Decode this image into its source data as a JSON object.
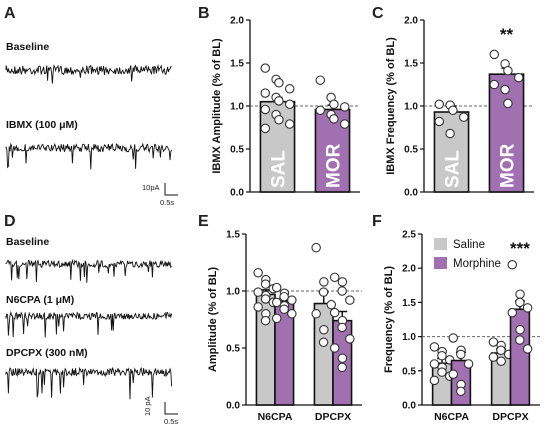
{
  "colors": {
    "saline": "#c8c8c8",
    "morphine": "#a070b0",
    "axis": "#111111",
    "point_fill": "#ffffff"
  },
  "panels": {
    "A": {
      "letter": "A",
      "trace_labels": [
        "Baseline",
        "IBMX (100 μM)"
      ],
      "scale_y": "10pA",
      "scale_x": "0.5s"
    },
    "D": {
      "letter": "D",
      "trace_labels": [
        "Baseline",
        "N6CPA (1 μM)",
        "DPCPX (300 nM)"
      ],
      "scale_y": "10 pA",
      "scale_x": "0.5s"
    },
    "B": {
      "letter": "B"
    },
    "C": {
      "letter": "C"
    },
    "E": {
      "letter": "E"
    },
    "F": {
      "letter": "F"
    }
  },
  "chart_data": [
    {
      "panel": "B",
      "type": "bar",
      "ylabel": "IBMX Amplitude (% of BL)",
      "ylim": [
        0,
        2.0
      ],
      "yticks": [
        "0.0",
        "0.5",
        "1.0",
        "1.5",
        "2.0"
      ],
      "reference_line": 1.0,
      "categories": [
        "SAL",
        "MOR"
      ],
      "values": [
        1.05,
        0.96
      ],
      "errors": [
        0.05,
        0.05
      ],
      "points": [
        [
          1.44,
          1.31,
          1.27,
          1.2,
          1.15,
          1.1,
          1.06,
          1.02,
          0.96,
          0.9,
          0.84,
          0.79,
          0.74
        ],
        [
          1.3,
          1.1,
          1.02,
          0.99,
          0.95,
          0.9,
          0.85,
          0.79
        ]
      ]
    },
    {
      "panel": "C",
      "type": "bar",
      "ylabel": "IBMX Frequency (% of BL)",
      "ylim": [
        0,
        2.0
      ],
      "yticks": [
        "0.0",
        "0.5",
        "1.0",
        "1.5",
        "2.0"
      ],
      "reference_line": 1.0,
      "categories": [
        "SAL",
        "MOR"
      ],
      "values": [
        0.93,
        1.37
      ],
      "errors": [
        0.07,
        0.07
      ],
      "points": [
        [
          1.02,
          1.01,
          0.95,
          0.87,
          0.82,
          0.68
        ],
        [
          1.6,
          1.49,
          1.41,
          1.33,
          1.25,
          1.19,
          1.03
        ]
      ],
      "significance": [
        {
          "category": "MOR",
          "label": "**"
        }
      ]
    },
    {
      "panel": "E",
      "type": "bar",
      "ylabel": "Amplitude (% of BL)",
      "ylim": [
        0,
        1.5
      ],
      "yticks": [
        "0.0",
        "0.5",
        "1.0",
        "1.5"
      ],
      "reference_line": 1.0,
      "categories": [
        "N6CPA",
        "DPCPX"
      ],
      "series": [
        {
          "name": "Saline",
          "values": [
            0.97,
            0.89
          ],
          "errors": [
            0.04,
            0.1
          ],
          "points": [
            [
              1.16,
              1.1,
              1.06,
              1.02,
              0.99,
              0.96,
              0.93,
              0.9,
              0.86,
              0.8,
              0.74
            ],
            [
              1.38,
              1.08,
              0.99,
              0.88,
              0.8,
              0.66,
              0.55
            ]
          ]
        },
        {
          "name": "Morphine",
          "values": [
            0.91,
            0.74
          ],
          "errors": [
            0.03,
            0.08
          ],
          "points": [
            [
              1.03,
              0.98,
              0.95,
              0.92,
              0.9,
              0.87,
              0.84,
              0.8,
              0.76
            ],
            [
              1.12,
              1.08,
              1.0,
              0.92,
              0.81,
              0.74,
              0.68,
              0.58,
              0.5,
              0.41,
              0.33
            ]
          ]
        }
      ]
    },
    {
      "panel": "F",
      "type": "bar",
      "ylabel": "Frequency (% of BL)",
      "ylim": [
        0,
        2.5
      ],
      "yticks": [
        "0.0",
        "0.5",
        "1.0",
        "1.5",
        "2.0",
        "2.5"
      ],
      "reference_line": 1.0,
      "categories": [
        "N6CPA",
        "DPCPX"
      ],
      "series": [
        {
          "name": "Saline",
          "values": [
            0.61,
            0.76
          ],
          "errors": [
            0.07,
            0.06
          ],
          "points": [
            [
              0.85,
              0.78,
              0.72,
              0.66,
              0.6,
              0.55,
              0.48,
              0.42,
              0.36
            ],
            [
              0.92,
              0.87,
              0.8,
              0.74,
              0.7,
              0.64
            ]
          ]
        },
        {
          "name": "Morphine",
          "values": [
            0.65,
            1.4
          ],
          "errors": [
            0.12,
            0.12
          ],
          "points": [
            [
              0.98,
              0.8,
              0.74,
              0.6,
              0.45,
              0.3,
              0.2
            ],
            [
              2.05,
              1.62,
              1.5,
              1.42,
              1.35,
              1.1,
              0.95,
              0.82
            ]
          ]
        }
      ],
      "legend": {
        "position": "top-left",
        "entries": [
          "Saline",
          "Morphine"
        ]
      },
      "significance": [
        {
          "category": "DPCPX",
          "label": "***"
        }
      ]
    }
  ]
}
